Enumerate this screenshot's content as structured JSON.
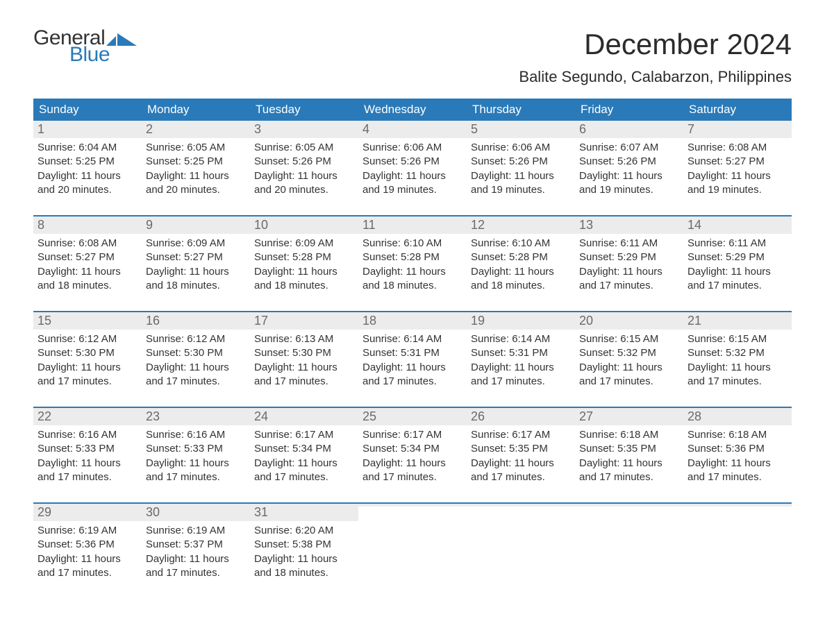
{
  "logo": {
    "text_general": "General",
    "text_blue": "Blue",
    "shape_color": "#2a7ab9"
  },
  "header": {
    "month_title": "December 2024",
    "location": "Balite Segundo, Calabarzon, Philippines"
  },
  "colors": {
    "header_bg": "#2a7ab9",
    "header_text": "#ffffff",
    "daynum_bg": "#ececec",
    "daynum_text": "#6a6a6a",
    "body_text": "#333333",
    "week_border": "#2a7ab9",
    "page_bg": "#ffffff"
  },
  "typography": {
    "month_title_fontsize": 42,
    "location_fontsize": 22,
    "dow_fontsize": 17,
    "daynum_fontsize": 18,
    "daytext_fontsize": 15
  },
  "calendar": {
    "days_of_week": [
      "Sunday",
      "Monday",
      "Tuesday",
      "Wednesday",
      "Thursday",
      "Friday",
      "Saturday"
    ],
    "weeks": [
      [
        {
          "num": "1",
          "sunrise": "Sunrise: 6:04 AM",
          "sunset": "Sunset: 5:25 PM",
          "day1": "Daylight: 11 hours",
          "day2": "and 20 minutes."
        },
        {
          "num": "2",
          "sunrise": "Sunrise: 6:05 AM",
          "sunset": "Sunset: 5:25 PM",
          "day1": "Daylight: 11 hours",
          "day2": "and 20 minutes."
        },
        {
          "num": "3",
          "sunrise": "Sunrise: 6:05 AM",
          "sunset": "Sunset: 5:26 PM",
          "day1": "Daylight: 11 hours",
          "day2": "and 20 minutes."
        },
        {
          "num": "4",
          "sunrise": "Sunrise: 6:06 AM",
          "sunset": "Sunset: 5:26 PM",
          "day1": "Daylight: 11 hours",
          "day2": "and 19 minutes."
        },
        {
          "num": "5",
          "sunrise": "Sunrise: 6:06 AM",
          "sunset": "Sunset: 5:26 PM",
          "day1": "Daylight: 11 hours",
          "day2": "and 19 minutes."
        },
        {
          "num": "6",
          "sunrise": "Sunrise: 6:07 AM",
          "sunset": "Sunset: 5:26 PM",
          "day1": "Daylight: 11 hours",
          "day2": "and 19 minutes."
        },
        {
          "num": "7",
          "sunrise": "Sunrise: 6:08 AM",
          "sunset": "Sunset: 5:27 PM",
          "day1": "Daylight: 11 hours",
          "day2": "and 19 minutes."
        }
      ],
      [
        {
          "num": "8",
          "sunrise": "Sunrise: 6:08 AM",
          "sunset": "Sunset: 5:27 PM",
          "day1": "Daylight: 11 hours",
          "day2": "and 18 minutes."
        },
        {
          "num": "9",
          "sunrise": "Sunrise: 6:09 AM",
          "sunset": "Sunset: 5:27 PM",
          "day1": "Daylight: 11 hours",
          "day2": "and 18 minutes."
        },
        {
          "num": "10",
          "sunrise": "Sunrise: 6:09 AM",
          "sunset": "Sunset: 5:28 PM",
          "day1": "Daylight: 11 hours",
          "day2": "and 18 minutes."
        },
        {
          "num": "11",
          "sunrise": "Sunrise: 6:10 AM",
          "sunset": "Sunset: 5:28 PM",
          "day1": "Daylight: 11 hours",
          "day2": "and 18 minutes."
        },
        {
          "num": "12",
          "sunrise": "Sunrise: 6:10 AM",
          "sunset": "Sunset: 5:28 PM",
          "day1": "Daylight: 11 hours",
          "day2": "and 18 minutes."
        },
        {
          "num": "13",
          "sunrise": "Sunrise: 6:11 AM",
          "sunset": "Sunset: 5:29 PM",
          "day1": "Daylight: 11 hours",
          "day2": "and 17 minutes."
        },
        {
          "num": "14",
          "sunrise": "Sunrise: 6:11 AM",
          "sunset": "Sunset: 5:29 PM",
          "day1": "Daylight: 11 hours",
          "day2": "and 17 minutes."
        }
      ],
      [
        {
          "num": "15",
          "sunrise": "Sunrise: 6:12 AM",
          "sunset": "Sunset: 5:30 PM",
          "day1": "Daylight: 11 hours",
          "day2": "and 17 minutes."
        },
        {
          "num": "16",
          "sunrise": "Sunrise: 6:12 AM",
          "sunset": "Sunset: 5:30 PM",
          "day1": "Daylight: 11 hours",
          "day2": "and 17 minutes."
        },
        {
          "num": "17",
          "sunrise": "Sunrise: 6:13 AM",
          "sunset": "Sunset: 5:30 PM",
          "day1": "Daylight: 11 hours",
          "day2": "and 17 minutes."
        },
        {
          "num": "18",
          "sunrise": "Sunrise: 6:14 AM",
          "sunset": "Sunset: 5:31 PM",
          "day1": "Daylight: 11 hours",
          "day2": "and 17 minutes."
        },
        {
          "num": "19",
          "sunrise": "Sunrise: 6:14 AM",
          "sunset": "Sunset: 5:31 PM",
          "day1": "Daylight: 11 hours",
          "day2": "and 17 minutes."
        },
        {
          "num": "20",
          "sunrise": "Sunrise: 6:15 AM",
          "sunset": "Sunset: 5:32 PM",
          "day1": "Daylight: 11 hours",
          "day2": "and 17 minutes."
        },
        {
          "num": "21",
          "sunrise": "Sunrise: 6:15 AM",
          "sunset": "Sunset: 5:32 PM",
          "day1": "Daylight: 11 hours",
          "day2": "and 17 minutes."
        }
      ],
      [
        {
          "num": "22",
          "sunrise": "Sunrise: 6:16 AM",
          "sunset": "Sunset: 5:33 PM",
          "day1": "Daylight: 11 hours",
          "day2": "and 17 minutes."
        },
        {
          "num": "23",
          "sunrise": "Sunrise: 6:16 AM",
          "sunset": "Sunset: 5:33 PM",
          "day1": "Daylight: 11 hours",
          "day2": "and 17 minutes."
        },
        {
          "num": "24",
          "sunrise": "Sunrise: 6:17 AM",
          "sunset": "Sunset: 5:34 PM",
          "day1": "Daylight: 11 hours",
          "day2": "and 17 minutes."
        },
        {
          "num": "25",
          "sunrise": "Sunrise: 6:17 AM",
          "sunset": "Sunset: 5:34 PM",
          "day1": "Daylight: 11 hours",
          "day2": "and 17 minutes."
        },
        {
          "num": "26",
          "sunrise": "Sunrise: 6:17 AM",
          "sunset": "Sunset: 5:35 PM",
          "day1": "Daylight: 11 hours",
          "day2": "and 17 minutes."
        },
        {
          "num": "27",
          "sunrise": "Sunrise: 6:18 AM",
          "sunset": "Sunset: 5:35 PM",
          "day1": "Daylight: 11 hours",
          "day2": "and 17 minutes."
        },
        {
          "num": "28",
          "sunrise": "Sunrise: 6:18 AM",
          "sunset": "Sunset: 5:36 PM",
          "day1": "Daylight: 11 hours",
          "day2": "and 17 minutes."
        }
      ],
      [
        {
          "num": "29",
          "sunrise": "Sunrise: 6:19 AM",
          "sunset": "Sunset: 5:36 PM",
          "day1": "Daylight: 11 hours",
          "day2": "and 17 minutes."
        },
        {
          "num": "30",
          "sunrise": "Sunrise: 6:19 AM",
          "sunset": "Sunset: 5:37 PM",
          "day1": "Daylight: 11 hours",
          "day2": "and 17 minutes."
        },
        {
          "num": "31",
          "sunrise": "Sunrise: 6:20 AM",
          "sunset": "Sunset: 5:38 PM",
          "day1": "Daylight: 11 hours",
          "day2": "and 18 minutes."
        },
        {
          "empty": true
        },
        {
          "empty": true
        },
        {
          "empty": true
        },
        {
          "empty": true
        }
      ]
    ]
  }
}
